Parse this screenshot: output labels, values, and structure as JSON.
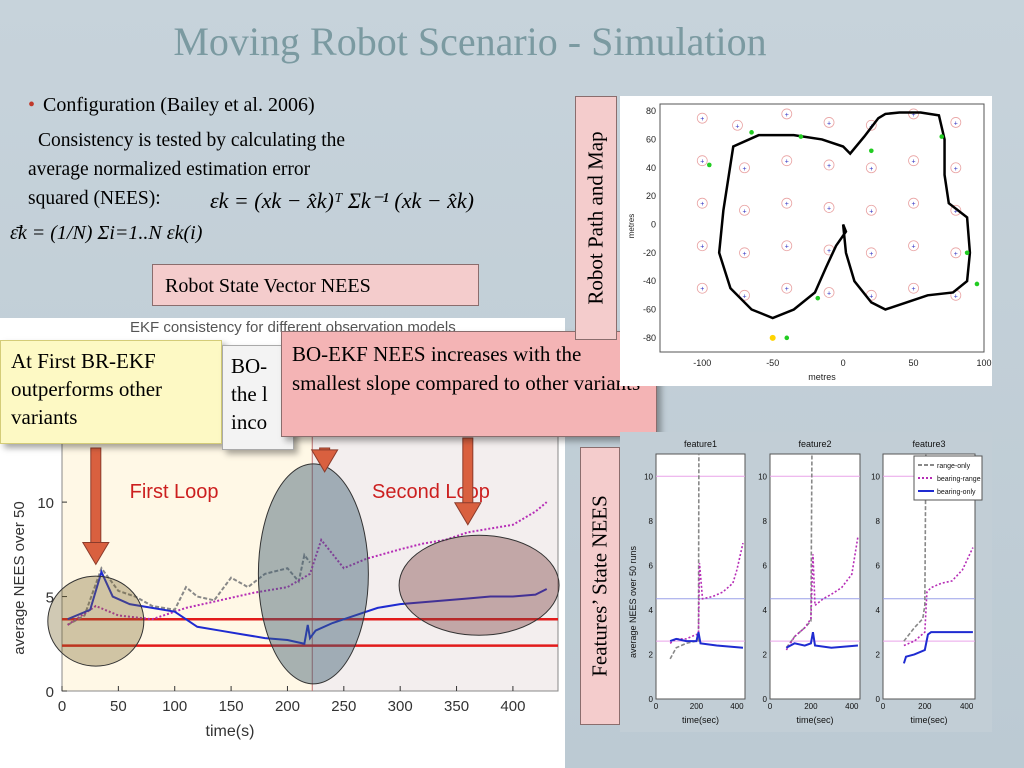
{
  "title": "Moving Robot Scenario  - Simulation",
  "config": {
    "bullet": "•",
    "line": "Configuration (Bailey et al. 2006)",
    "consistency_lines": [
      "Consistency is tested by calculating the",
      "average normalized estimation error",
      "squared (NEES):"
    ],
    "eq_nees": "εk = (xk − x̂k)ᵀ Σk⁻¹ (xk − x̂k)",
    "eq_avg": "ε̄k = (1/N) Σi=1..N εk(i)"
  },
  "boxes": {
    "robot_state": "Robot State Vector NEES",
    "callout_left": "At First BR-EKF outperforms other variants",
    "callout_mid_lines": [
      "BO-",
      "the l",
      "inco"
    ],
    "callout_right": "BO-EKF NEES increases with the smallest slope  compared to other variants",
    "robot_path_label": "Robot Path and Map",
    "features_label": "Features’ State NEES"
  },
  "colors": {
    "accent_red": "#c0392b",
    "title_teal": "#7b9aa1",
    "range_only": "#888888",
    "bearing_range": "#b62db6",
    "bearing_only": "#1f2bd1",
    "callout_yellow": "#fdf9c4",
    "callout_pink": "#f4b4b5"
  },
  "chart_data": [
    {
      "id": "main",
      "type": "line",
      "title": "EKF consistency for different observation models",
      "xlabel": "time(s)",
      "ylabel": "average NEES over 50",
      "xlim": [
        0,
        440
      ],
      "ylim": [
        0,
        13.5
      ],
      "xticks": [
        0,
        50,
        100,
        150,
        200,
        250,
        300,
        350,
        400
      ],
      "yticks": [
        0,
        5,
        10
      ],
      "annotations": [
        "First Loop",
        "Second Loop"
      ],
      "bounds": [
        3.8,
        2.4
      ],
      "loop_boundary_x": 222,
      "series": [
        {
          "name": "range-only",
          "color": "#888888",
          "x": [
            5,
            20,
            35,
            50,
            65,
            80,
            100,
            110,
            120,
            135,
            150,
            165,
            180,
            200,
            210,
            215,
            220
          ],
          "y": [
            3.5,
            4,
            6.5,
            5.3,
            5,
            4.5,
            4.3,
            5.5,
            5,
            4.8,
            6,
            5.5,
            6.2,
            6.5,
            5.8,
            7.2,
            6.8
          ]
        },
        {
          "name": "bearing-range",
          "color": "#b62db6",
          "x": [
            5,
            30,
            50,
            80,
            110,
            140,
            170,
            200,
            220,
            230,
            250,
            270,
            300,
            320,
            340,
            360,
            380,
            400,
            420,
            430
          ],
          "y": [
            3.5,
            4.5,
            4,
            3.8,
            4.4,
            4.8,
            5.2,
            5.5,
            6.2,
            8,
            6.5,
            7,
            7.5,
            7.8,
            8,
            8.4,
            8.6,
            8.8,
            9.5,
            10
          ]
        },
        {
          "name": "bearing-only",
          "color": "#1f2bd1",
          "x": [
            5,
            25,
            35,
            45,
            60,
            80,
            100,
            120,
            140,
            160,
            180,
            200,
            215,
            218,
            220,
            225,
            240,
            260,
            280,
            300,
            320,
            340,
            360,
            380,
            400,
            420,
            430
          ],
          "y": [
            3.8,
            4.3,
            6.3,
            5,
            4.6,
            4.4,
            4.2,
            3.4,
            3.2,
            3.0,
            2.8,
            2.7,
            2.5,
            3.5,
            2.8,
            3.2,
            3.6,
            4.0,
            4.4,
            4.6,
            4.7,
            4.8,
            4.9,
            5.0,
            5.0,
            5.1,
            5.4
          ]
        }
      ]
    },
    {
      "id": "path",
      "type": "scatter",
      "xlabel": "metres",
      "ylabel": "metres",
      "xlim": [
        -130,
        100
      ],
      "ylim": [
        -90,
        85
      ],
      "xticks": [
        -100,
        -50,
        0,
        50,
        100
      ],
      "yticks": [
        80,
        60,
        40,
        20,
        0,
        -20,
        -40,
        -60,
        -80
      ],
      "robot_path": {
        "x": [
          -85,
          -78,
          -60,
          -35,
          -15,
          0,
          5,
          15,
          25,
          30,
          40,
          55,
          68,
          72,
          72,
          75,
          88,
          90,
          88,
          78,
          60,
          45,
          30,
          20,
          8,
          2,
          0,
          2,
          -5,
          -12,
          -20,
          -35,
          -50,
          -65,
          -80,
          -88,
          -85
        ],
        "y": [
          10,
          55,
          63,
          63,
          60,
          55,
          50,
          62,
          75,
          78,
          79,
          79,
          77,
          60,
          35,
          15,
          5,
          -20,
          -40,
          -48,
          -50,
          -55,
          -60,
          -55,
          -40,
          -20,
          0,
          -5,
          -15,
          -30,
          -48,
          -60,
          -66,
          -60,
          -45,
          -20,
          10
        ]
      },
      "landmarks": {
        "x": [
          -100,
          -75,
          -40,
          -10,
          20,
          50,
          80,
          -100,
          -70,
          -40,
          -10,
          20,
          50,
          80,
          -100,
          -70,
          -40,
          -10,
          20,
          50,
          80,
          -100,
          -70,
          -40,
          -10,
          20,
          50,
          80,
          -100,
          -70,
          -40,
          -10,
          20,
          50,
          80
        ],
        "y": [
          75,
          70,
          78,
          72,
          70,
          78,
          72,
          45,
          40,
          45,
          42,
          40,
          45,
          40,
          15,
          10,
          15,
          12,
          10,
          15,
          10,
          -15,
          -20,
          -15,
          -18,
          -20,
          -15,
          -20,
          -45,
          -50,
          -45,
          -48,
          -50,
          -45,
          -50
        ]
      }
    },
    {
      "id": "features",
      "type": "line",
      "ylabel": "average NEES over 50 runs",
      "xlabel": "time(sec)",
      "ylim": [
        0,
        11
      ],
      "xlim": [
        0,
        440
      ],
      "yticks": [
        0,
        2,
        4,
        6,
        8,
        10
      ],
      "xticks": [
        0,
        200,
        400
      ],
      "legend": "top-right",
      "panels": [
        {
          "title": "feature1",
          "series": [
            {
              "name": "range-only",
              "x": [
                70,
                100,
                150,
                200,
                210,
                212
              ],
              "y": [
                1.8,
                2.3,
                2.5,
                2.6,
                2.6,
                11
              ]
            },
            {
              "name": "bearing-range",
              "x": [
                70,
                100,
                150,
                200,
                210,
                215,
                230,
                280,
                330,
                380,
                400,
                430
              ],
              "y": [
                2.5,
                2.7,
                2.7,
                2.9,
                2.8,
                6.1,
                4.5,
                4.6,
                4.8,
                5.2,
                5.8,
                7
              ]
            },
            {
              "name": "bearing-only",
              "x": [
                70,
                100,
                150,
                200,
                210,
                220,
                300,
                430
              ],
              "y": [
                2.6,
                2.7,
                2.6,
                2.6,
                3,
                2.5,
                2.4,
                2.3
              ]
            }
          ]
        },
        {
          "title": "feature2",
          "series": [
            {
              "name": "range-only",
              "x": [
                80,
                120,
                170,
                200,
                205
              ],
              "y": [
                2.3,
                2.8,
                3.2,
                3.5,
                11
              ]
            },
            {
              "name": "bearing-range",
              "x": [
                80,
                120,
                170,
                200,
                210,
                220,
                260,
                300,
                350,
                400,
                430
              ],
              "y": [
                2.2,
                2.8,
                3.2,
                3.6,
                6.5,
                4.2,
                4.5,
                4.7,
                5,
                5.6,
                7.3
              ]
            },
            {
              "name": "bearing-only",
              "x": [
                80,
                120,
                170,
                200,
                210,
                220,
                300,
                430
              ],
              "y": [
                2.3,
                2.5,
                2.4,
                2.5,
                3,
                2.4,
                2.3,
                2.4
              ]
            }
          ]
        },
        {
          "title": "feature3",
          "series": [
            {
              "name": "range-only",
              "x": [
                100,
                150,
                190,
                200,
                205
              ],
              "y": [
                2.6,
                3.2,
                3.6,
                4.2,
                11
              ]
            },
            {
              "name": "bearing-range",
              "x": [
                100,
                150,
                200,
                210,
                230,
                280,
                330,
                380,
                430
              ],
              "y": [
                2.4,
                2.6,
                3,
                4.8,
                5,
                5.2,
                5.3,
                5.8,
                6.8
              ]
            },
            {
              "name": "bearing-only",
              "x": [
                100,
                110,
                150,
                200,
                215,
                230,
                300,
                430
              ],
              "y": [
                1.6,
                1.9,
                2,
                2.2,
                2.9,
                3,
                3,
                3
              ]
            }
          ]
        }
      ]
    }
  ]
}
